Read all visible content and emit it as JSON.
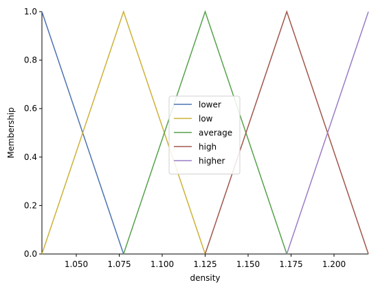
{
  "chart_data": {
    "type": "line",
    "title": "",
    "xlabel": "density",
    "ylabel": "Membership",
    "xlim": [
      1.03,
      1.22
    ],
    "ylim": [
      0,
      1
    ],
    "xticks": [
      1.05,
      1.075,
      1.1,
      1.125,
      1.15,
      1.175,
      1.2
    ],
    "xtick_labels": [
      "1.050",
      "1.075",
      "1.100",
      "1.125",
      "1.150",
      "1.175",
      "1.200"
    ],
    "yticks": [
      0,
      0.2,
      0.4,
      0.6,
      0.8,
      1.0
    ],
    "ytick_labels": [
      "0.0",
      "0.2",
      "0.4",
      "0.6",
      "0.8",
      "1.0"
    ],
    "grid": false,
    "legend_position": "center-right",
    "series": [
      {
        "name": "lower",
        "color": "#4c72b0",
        "x": [
          1.03,
          1.0775
        ],
        "y": [
          1,
          0
        ]
      },
      {
        "name": "low",
        "color": "#ccb136",
        "x": [
          1.03,
          1.0775,
          1.125
        ],
        "y": [
          0,
          1,
          0
        ]
      },
      {
        "name": "average",
        "color": "#55a24a",
        "x": [
          1.0775,
          1.125,
          1.1725
        ],
        "y": [
          0,
          1,
          0
        ]
      },
      {
        "name": "high",
        "color": "#a0554a",
        "x": [
          1.125,
          1.1725,
          1.22
        ],
        "y": [
          0,
          1,
          0
        ]
      },
      {
        "name": "higher",
        "color": "#9a7cc6",
        "x": [
          1.1725,
          1.22
        ],
        "y": [
          0,
          1
        ]
      }
    ]
  }
}
